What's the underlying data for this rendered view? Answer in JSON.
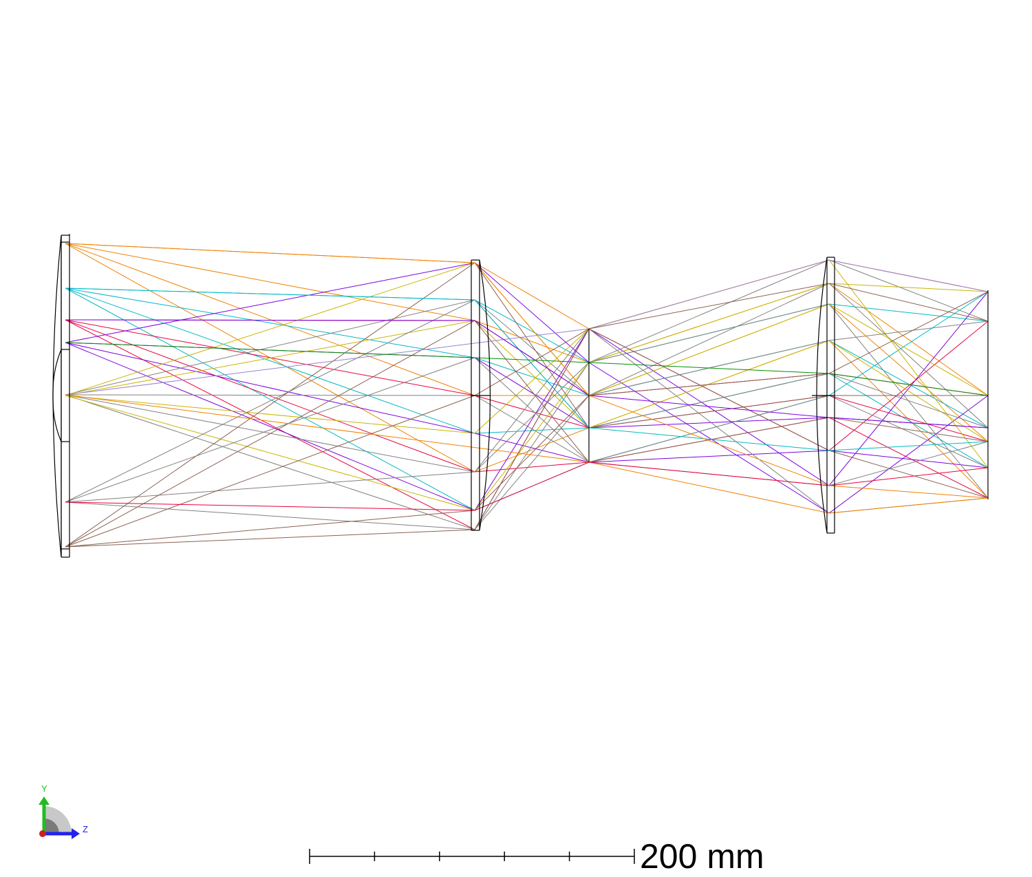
{
  "scale_bar": {
    "label": "200 mm",
    "ticks": 5
  },
  "axes_triad": {
    "y_label": "Y",
    "z_label": "Z",
    "colors": {
      "y": "#22bb22",
      "z": "#2222ee",
      "x": "#cc2222",
      "quadrant": "#9a9a9a"
    }
  },
  "ray_colors": [
    "#f08000",
    "#00b8c8",
    "#e8003c",
    "#7a00e0",
    "#808080",
    "#c8b400",
    "#009000",
    "#8a6050",
    "#9a80d0",
    "#3050d0"
  ]
}
